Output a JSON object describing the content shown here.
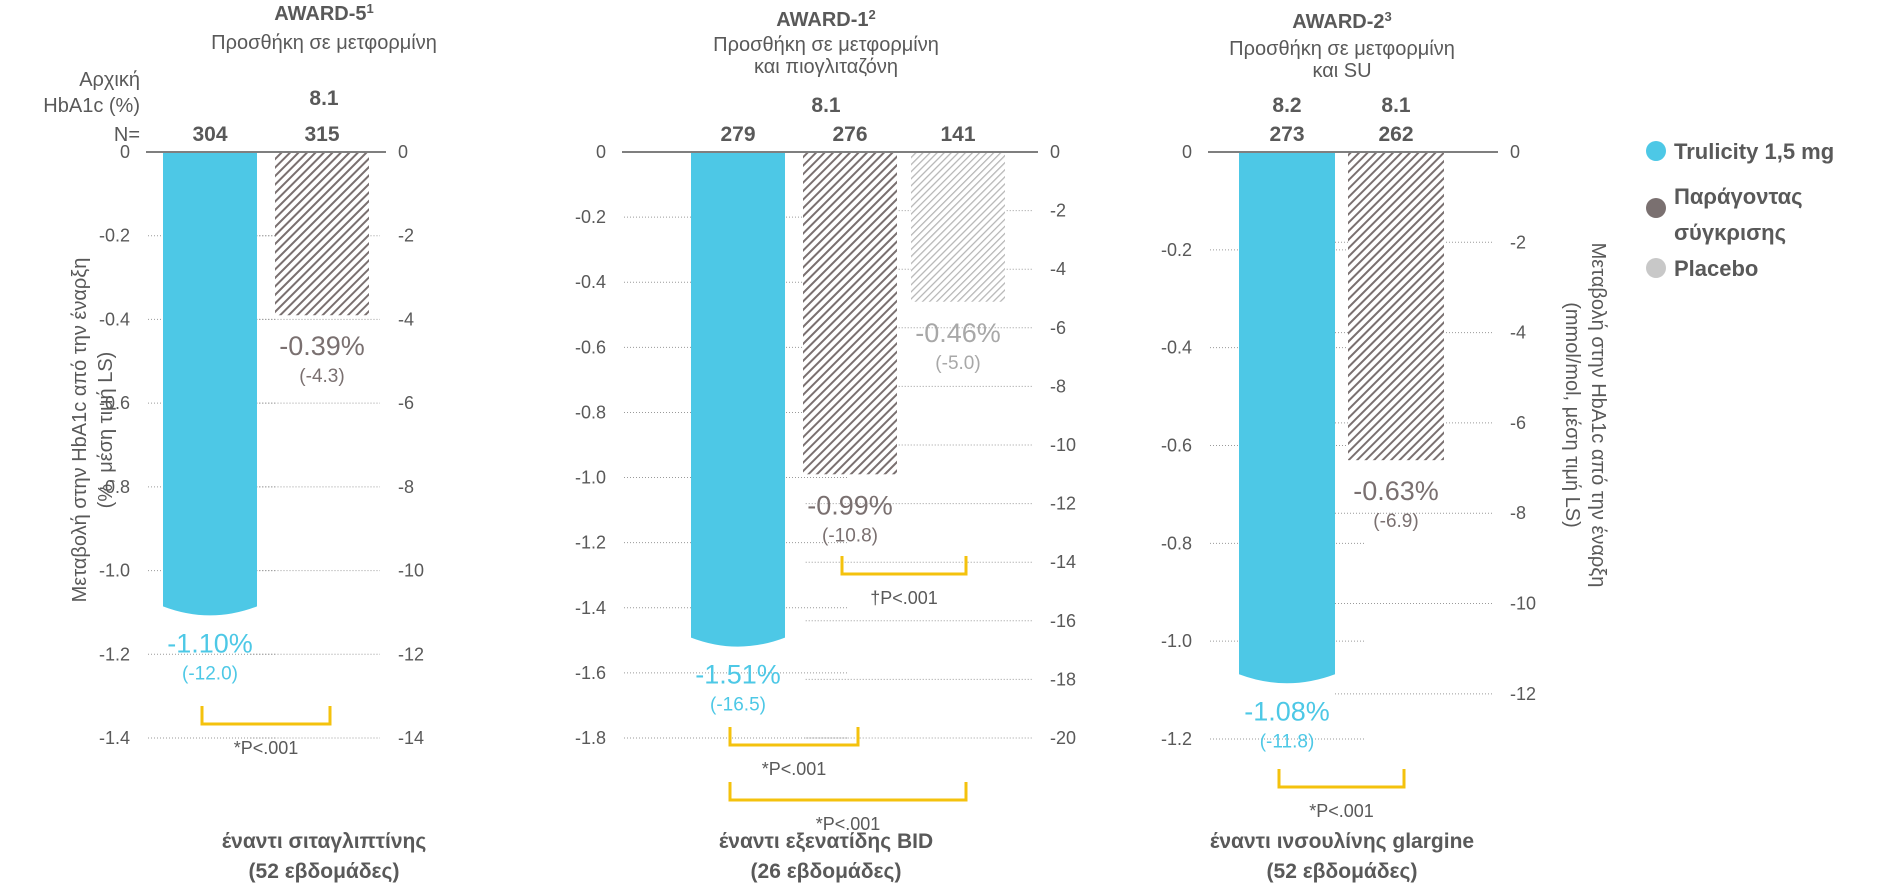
{
  "colors": {
    "trulicity": "#4dc8e6",
    "comparator": "#7a7070",
    "placebo": "#b5b5b5",
    "bracket": "#f4c20d",
    "text": "#595959"
  },
  "side_labels": {
    "baseline_line1": "Αρχική",
    "baseline_line2": "HbA1c (%)",
    "n_label": "N="
  },
  "left_axis_title": [
    "Μεταβολή στην HbA1c από την έναρξη",
    "(%, μέση τιμή LS)"
  ],
  "right_axis_title": [
    "Μεταβολή στην HbA1c από την έναρξη",
    "(mmol/mol, μέση τιμή LS)"
  ],
  "legend": [
    {
      "label": "Trulicity 1,5 mg",
      "color": "#4dc8e6"
    },
    {
      "label": "Παράγοντας",
      "label2": "σύγκρισης",
      "color": "#7a7070"
    },
    {
      "label": "Placebo",
      "color": "#b5b5b5"
    }
  ],
  "chart_data": [
    {
      "type": "bar",
      "study": "AWARD-5",
      "study_sup": "1",
      "subtitle": [
        "Προσθήκη σε μετφορμίνη"
      ],
      "baseline_labels": [
        "8.1"
      ],
      "comparison": [
        "έναντι σιταγλιπτίνης",
        "(52 εβδομάδες)"
      ],
      "left_ylim": [
        -1.4,
        0
      ],
      "left_ticks": [
        "0",
        "-0.2",
        "-0.4",
        "-0.6",
        "-0.8",
        "-1.0",
        "-1.2",
        "-1.4"
      ],
      "right_ylim": [
        -14,
        0
      ],
      "right_ticks": [
        "0",
        "-2",
        "-4",
        "-6",
        "-8",
        "-10",
        "-12",
        "-14"
      ],
      "bars": [
        {
          "kind": "trulicity",
          "n": "304",
          "value": -1.1,
          "label": "-1.10%",
          "mmol": "(-12.0)"
        },
        {
          "kind": "comparator",
          "n": "315",
          "value": -0.39,
          "label": "-0.39%",
          "mmol": "(-4.3)"
        }
      ],
      "pvalues": [
        {
          "from": 0,
          "to": 1,
          "label": "*P<.001"
        }
      ]
    },
    {
      "type": "bar",
      "study": "AWARD-1",
      "study_sup": "2",
      "subtitle": [
        "Προσθήκη σε μετφορμίνη",
        "και πιογλιταζόνη"
      ],
      "baseline_labels": [
        "8.1"
      ],
      "comparison": [
        "έναντι εξενατίδης BID",
        "(26 εβδομάδες)"
      ],
      "left_ylim": [
        -1.8,
        0
      ],
      "left_ticks": [
        "0",
        "-0.2",
        "-0.4",
        "-0.6",
        "-0.8",
        "-1.0",
        "-1.2",
        "-1.4",
        "-1.6",
        "-1.8"
      ],
      "right_ylim": [
        -20,
        0
      ],
      "right_ticks": [
        "0",
        "-2",
        "-4",
        "-6",
        "-8",
        "-10",
        "-12",
        "-14",
        "-16",
        "-18",
        "-20"
      ],
      "bars": [
        {
          "kind": "trulicity",
          "n": "279",
          "value": -1.51,
          "label": "-1.51%",
          "mmol": "(-16.5)"
        },
        {
          "kind": "comparator",
          "n": "276",
          "value": -0.99,
          "label": "-0.99%",
          "mmol": "(-10.8)"
        },
        {
          "kind": "placebo",
          "n": "141",
          "value": -0.46,
          "label": "-0.46%",
          "mmol": "(-5.0)"
        }
      ],
      "pvalues": [
        {
          "from": 1,
          "to": 2,
          "label": "†P<.001"
        },
        {
          "from": 0,
          "to": 1,
          "label": "*P<.001"
        },
        {
          "from": 0,
          "to": 2,
          "label": "*P<.001"
        }
      ]
    },
    {
      "type": "bar",
      "study": "AWARD-2",
      "study_sup": "3",
      "subtitle": [
        "Προσθήκη σε μετφορμίνη",
        "και  SU"
      ],
      "baseline_labels": [
        "8.2",
        "8.1"
      ],
      "comparison": [
        "έναντι ινσουλίνης glargine",
        "(52 εβδομάδες)"
      ],
      "left_ylim": [
        -1.2,
        0
      ],
      "left_ticks": [
        "0",
        "-0.2",
        "-0.4",
        "-0.6",
        "-0.8",
        "-1.0",
        "-1.2"
      ],
      "right_ylim": [
        -13,
        0
      ],
      "right_ticks": [
        "0",
        "-2",
        "-4",
        "-6",
        "-8",
        "-10",
        "-12"
      ],
      "bars": [
        {
          "kind": "trulicity",
          "n": "273",
          "value": -1.08,
          "label": "-1.08%",
          "mmol": "(-11.8)"
        },
        {
          "kind": "comparator",
          "n": "262",
          "value": -0.63,
          "label": "-0.63%",
          "mmol": "(-6.9)"
        }
      ],
      "pvalues": [
        {
          "from": 0,
          "to": 1,
          "label": "*P<.001"
        }
      ]
    }
  ]
}
